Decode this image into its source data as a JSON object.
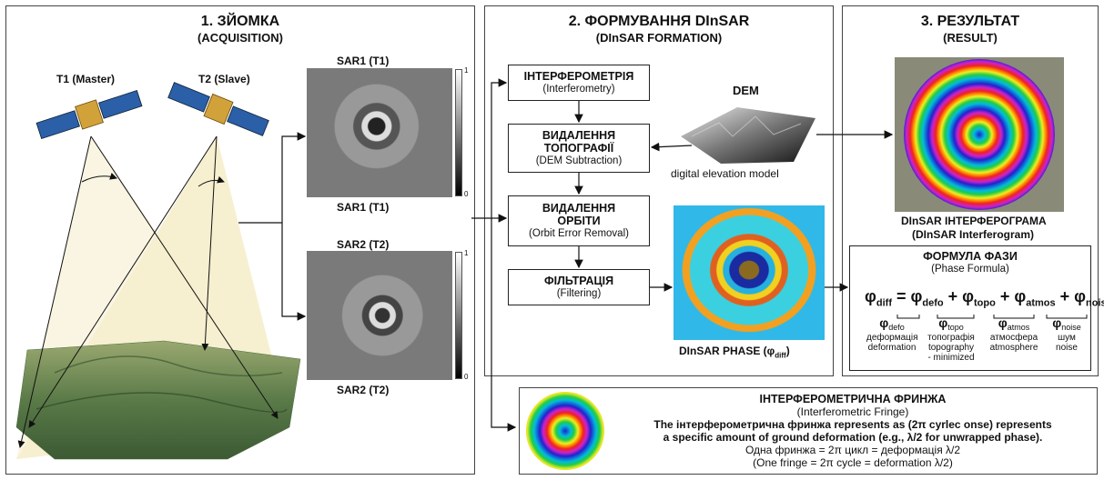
{
  "panel1": {
    "title": "1. ЗЙОМКА",
    "subtitle": "(ACQUISITION)",
    "sat1": "T1 (Master)",
    "sat2": "T2 (Slave)"
  },
  "sar": {
    "sar1_top": "SAR1 (T1)",
    "sar1_bottom": "SAR1 (T1)",
    "sar2_top": "SAR2 (T2)",
    "sar2_bottom": "SAR2 (T2)",
    "cbar_max": "1",
    "cbar_min": "0"
  },
  "panel2": {
    "title": "2. ФОРМУВАННЯ DInSAR",
    "subtitle": "(DInSAR FORMATION)",
    "steps": [
      {
        "title": "ІНТЕРФЕРОМЕТРІЯ",
        "sub": "(Interferometry)"
      },
      {
        "title": "ВИДАЛЕННЯ ТОПОГРАФІЇ",
        "sub": "(DEM Subtraction)"
      },
      {
        "title": "ВИДАЛЕННЯ ОРБІТИ",
        "sub": "(Orbit Error Removal)"
      },
      {
        "title": "ФІЛЬТРАЦІЯ",
        "sub": "(Filtering)"
      }
    ],
    "dem_title": "DEM",
    "dem_caption": "digital elevation model",
    "phase_caption": "DInSAR PHASE (φ",
    "phase_sub": "diff",
    "phase_close": ")"
  },
  "panel3": {
    "title": "3. РЕЗУЛЬТАТ",
    "subtitle": "(RESULT)",
    "interferogram_title": "DInSAR ІНТЕРФЕРОГРАМА",
    "interferogram_sub": "(DInSAR Interferogram)",
    "formula_title": "ФОРМУЛА ФАЗИ",
    "formula_sub": "(Phase Formula)",
    "terms": [
      {
        "sym": "φ",
        "sub": "defo",
        "uk": "деформація",
        "en": "deformation",
        "extra": ""
      },
      {
        "sym": "φ",
        "sub": "topo",
        "uk": "топографія",
        "en": "topography",
        "extra": "- minimized"
      },
      {
        "sym": "φ",
        "sub": "atmos",
        "uk": "атмосфера",
        "en": "atmosphere",
        "extra": ""
      },
      {
        "sym": "φ",
        "sub": "noise",
        "uk": "шум",
        "en": "noise",
        "extra": ""
      }
    ]
  },
  "fringe": {
    "title": "ІНТЕРФЕРОМЕТРИЧНА ФРИНЖА",
    "subtitle": "(Interferometric Fringe)",
    "line1": "The інтерферометрична фринжа represents as (2π cyrlec onse) represents",
    "line2": "a specific amount of ground deformation (e.g., λ/2 for unwrapped phase).",
    "line3": "Одна фринжа = 2π цикл = деформація λ/2",
    "line4": "(One fringe = 2π cycle = deformation λ/2)"
  },
  "colors": {
    "border": "#444444",
    "terrain": "#5a7a48",
    "beam": "#f4edc8",
    "sar_gray": "#8a8a8a"
  }
}
